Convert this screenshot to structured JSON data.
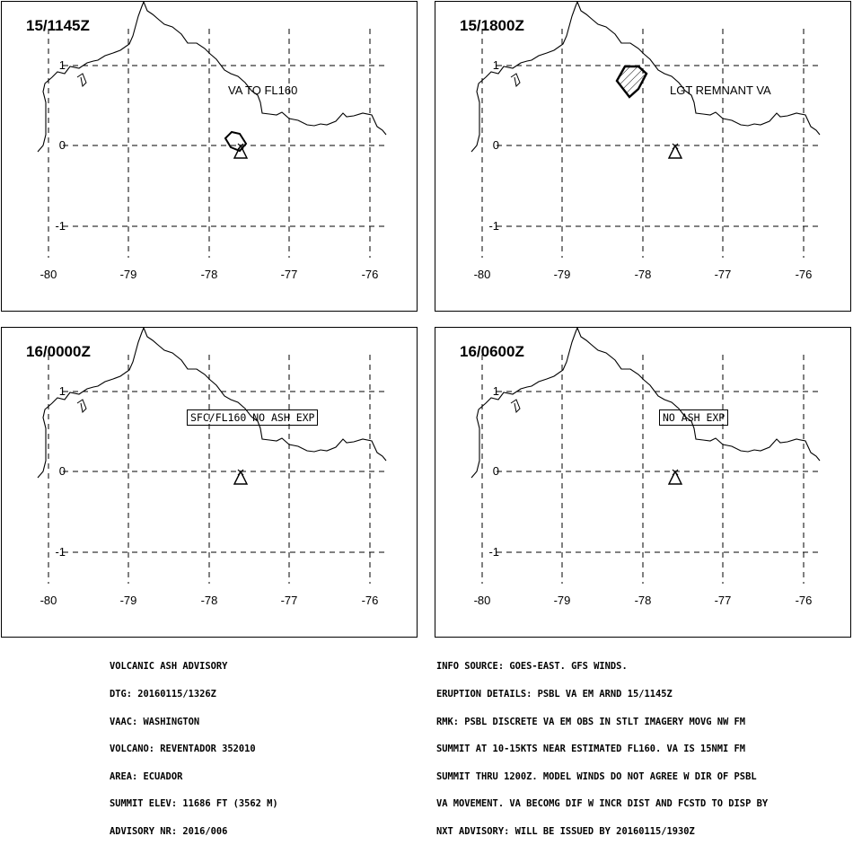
{
  "panels": [
    {
      "time": "15/1145Z",
      "annotation": "VA TO FL160",
      "annotation_style": "plain",
      "ash_area": "small"
    },
    {
      "time": "15/1800Z",
      "annotation": "LGT REMNANT VA",
      "annotation_style": "plain",
      "ash_area": "hexagon"
    },
    {
      "time": "16/0000Z",
      "annotation": "SFC/FL160 NO ASH EXP",
      "annotation_style": "box",
      "ash_area": "none"
    },
    {
      "time": "16/0600Z",
      "annotation": "NO ASH EXP",
      "annotation_style": "box",
      "ash_area": "none"
    }
  ],
  "axis": {
    "lon_labels": [
      "-80",
      "-79",
      "-78",
      "-77",
      "-76"
    ],
    "lat_labels": [
      "1",
      "0",
      "-1"
    ]
  },
  "advisory_left": [
    "VOLCANIC ASH ADVISORY",
    "DTG: 20160115/1326Z",
    "VAAC: WASHINGTON",
    "VOLCANO: REVENTADOR 352010",
    "AREA: ECUADOR",
    "SUMMIT ELEV: 11686 FT (3562 M)",
    "ADVISORY NR: 2016/006"
  ],
  "advisory_right": [
    "INFO SOURCE: GOES-EAST. GFS WINDS.",
    "ERUPTION DETAILS: PSBL VA EM ARND 15/1145Z",
    "RMK: PSBL DISCRETE VA EM OBS IN STLT IMAGERY MOVG NW FM",
    "SUMMIT AT 10-15KTS NEAR ESTIMATED FL160. VA IS 15NMI FM",
    "SUMMIT THRU 1200Z. MODEL WINDS DO NOT AGREE W DIR OF PSBL",
    "VA MOVEMENT. VA BECOMG DIF W INCR DIST AND FCSTD TO DISP BY",
    "NXT ADVISORY: WILL BE ISSUED BY 20160115/1930Z"
  ]
}
